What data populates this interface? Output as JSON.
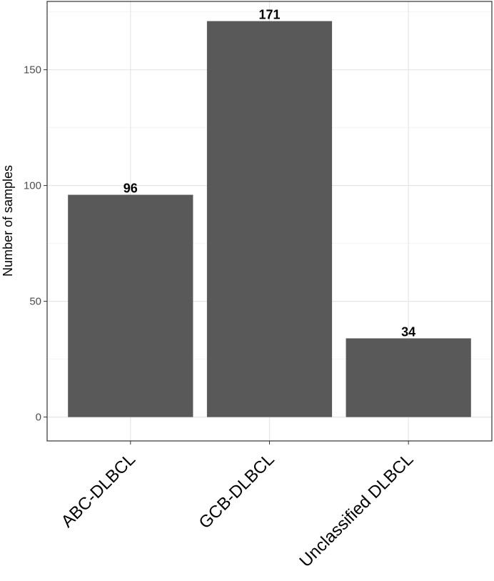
{
  "chart_data": {
    "type": "bar",
    "categories": [
      "ABC-DLBCL",
      "GCB-DLBCL",
      "Unclassified DLBCL"
    ],
    "values": [
      96,
      171,
      34
    ],
    "data_labels": [
      "96",
      "171",
      "34"
    ],
    "title": "",
    "xlabel": "",
    "ylabel": "Number of samples",
    "ylim": [
      -10.3,
      179.5
    ],
    "yticks": [
      0,
      50,
      100,
      150
    ],
    "ytick_labels": [
      "0",
      "50",
      "100",
      "150"
    ],
    "grid": true,
    "legend": "none",
    "bar_color": "#595959"
  }
}
